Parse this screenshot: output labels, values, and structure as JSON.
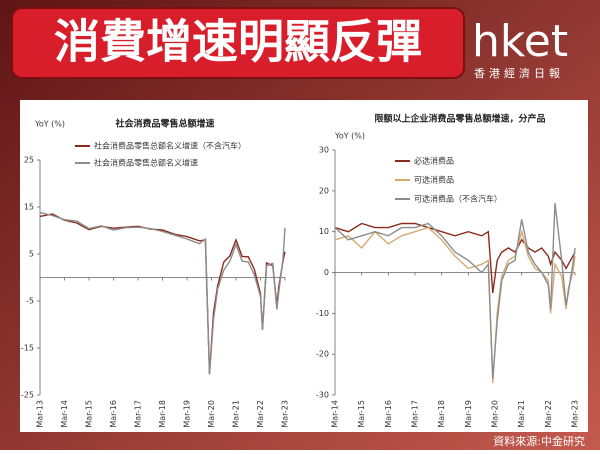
{
  "header": {
    "title": "消費增速明顯反彈",
    "brand": "hket",
    "brand_sub": "香港經濟日報"
  },
  "source": "資料來源:中金研究",
  "chart_data": [
    {
      "type": "line",
      "title": "社会消费品零售总额增速",
      "y_label": "YoY (%)",
      "x": [
        "Mar-13",
        "Sep-13",
        "Mar-14",
        "Sep-14",
        "Mar-15",
        "Sep-15",
        "Mar-16",
        "Sep-16",
        "Mar-17",
        "Sep-17",
        "Mar-18",
        "Sep-18",
        "Mar-19",
        "Sep-19",
        "Dec-19",
        "Feb-20",
        "Apr-20",
        "Jun-20",
        "Sep-20",
        "Dec-20",
        "Mar-21",
        "Jun-21",
        "Sep-21",
        "Dec-21",
        "Mar-22",
        "Apr-22",
        "Jun-22",
        "Sep-22",
        "Nov-22",
        "Dec-22",
        "Feb-23",
        "Mar-23"
      ],
      "series": [
        {
          "name": "社会消费品零售总额名义增速（不含汽车）",
          "color": "#8b2b1c",
          "values": [
            13,
            13.5,
            12.2,
            11.6,
            10.2,
            10.9,
            10.5,
            10.7,
            10.9,
            10.3,
            10.1,
            9.2,
            8.7,
            7.8,
            8,
            -20.5,
            -7.5,
            -1.8,
            3.3,
            4.6,
            8,
            4.5,
            4.4,
            1.7,
            -3.5,
            -11.1,
            3.1,
            2.5,
            -5.9,
            -1.8,
            3.5,
            5.5
          ]
        },
        {
          "name": "社会消费品零售总额名义增速",
          "color": "#8c8c8c",
          "values": [
            13.8,
            13.2,
            12.3,
            12,
            10.4,
            11,
            10.1,
            10.6,
            10.7,
            10.4,
            9.8,
            9,
            8.2,
            7.2,
            8.2,
            -20.6,
            -9,
            -2.5,
            1.6,
            3.5,
            7,
            3.5,
            3.3,
            0.5,
            -4,
            -11,
            2.5,
            3,
            -6.8,
            -2.9,
            4,
            10.6
          ]
        }
      ],
      "xlim": [
        "Mar-13",
        "Mar-23"
      ],
      "xticks": [
        "Mar-13",
        "Mar-14",
        "Mar-15",
        "Mar-16",
        "Mar-17",
        "Mar-18",
        "Mar-19",
        "Mar-20",
        "Mar-21",
        "Mar-22",
        "Mar-23"
      ],
      "ylim": [
        -25,
        25
      ],
      "yticks": [
        25,
        15,
        5,
        -5,
        -15,
        -25
      ]
    },
    {
      "type": "line",
      "title": "限额以上企业消费品零售总额增速，分产品",
      "y_label": "YoY (%)",
      "x": [
        "Mar-14",
        "Sep-14",
        "Mar-15",
        "Sep-15",
        "Mar-16",
        "Sep-16",
        "Mar-17",
        "Sep-17",
        "Mar-18",
        "Sep-18",
        "Mar-19",
        "Sep-19",
        "Dec-19",
        "Feb-20",
        "Apr-20",
        "Jun-20",
        "Sep-20",
        "Dec-20",
        "Mar-21",
        "Jun-21",
        "Sep-21",
        "Dec-21",
        "Mar-22",
        "Apr-22",
        "Jun-22",
        "Sep-22",
        "Nov-22",
        "Dec-22",
        "Feb-23",
        "Mar-23"
      ],
      "series": [
        {
          "name": "必选消费品",
          "color": "#8b2b1c",
          "values": [
            11,
            10,
            12,
            11,
            11,
            12,
            12,
            11,
            10,
            9,
            10,
            9,
            10,
            -5,
            3,
            5,
            6,
            5,
            8,
            6,
            5,
            6,
            4,
            2,
            5,
            3,
            1,
            2,
            4,
            5
          ]
        },
        {
          "name": "可选消费品",
          "color": "#d4aa72",
          "values": [
            8,
            9,
            6,
            10,
            7,
            9,
            10,
            11,
            8,
            4,
            1,
            2,
            3,
            -27,
            -10,
            -1,
            3,
            4,
            10,
            4,
            1,
            0,
            -2,
            -10,
            2,
            -1,
            -9,
            -4,
            0,
            4
          ]
        },
        {
          "name": "可选消费品（不含汽车）",
          "color": "#8c8c8c",
          "values": [
            11,
            8,
            9,
            10,
            9,
            11,
            11,
            12,
            9,
            5,
            3,
            0,
            2,
            -26,
            -12,
            -2,
            2,
            3,
            13,
            5,
            2,
            0,
            -3,
            -9,
            17,
            3,
            -8,
            -5,
            2,
            6
          ]
        }
      ],
      "xlim": [
        "Mar-14",
        "Mar-23"
      ],
      "xticks": [
        "Mar-14",
        "Mar-15",
        "Mar-16",
        "Mar-17",
        "Mar-18",
        "Mar-19",
        "Mar-20",
        "Mar-21",
        "Mar-22",
        "Mar-23"
      ],
      "ylim": [
        -30,
        30
      ],
      "yticks": [
        30,
        20,
        10,
        0,
        -10,
        -20,
        -30
      ]
    }
  ]
}
